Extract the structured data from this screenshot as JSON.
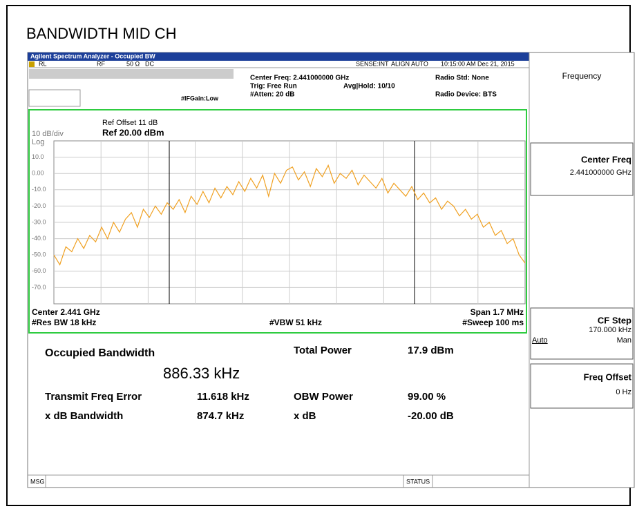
{
  "page_title": "BANDWIDTH MID CH",
  "window": {
    "title": "Agilent Spectrum Analyzer - Occupied BW"
  },
  "status_row": {
    "rl": "RL",
    "rf": "RF",
    "impedance": "50 Ω",
    "coupling": "DC",
    "sense": "SENSE:INT",
    "align": "ALIGN AUTO",
    "time": "10:15:00 AM Dec 21, 2015"
  },
  "header": {
    "center_freq": "Center Freq: 2.441000000 GHz",
    "trig": "Trig: Free Run",
    "avg_hold": "Avg|Hold: 10/10",
    "atten": "#Atten: 20 dB",
    "if_gain": "#IFGain:Low",
    "radio_std": "Radio Std: None",
    "radio_device": "Radio Device: BTS"
  },
  "graph": {
    "ref_offset": "Ref Offset 11 dB",
    "scale": "10 dB/div",
    "ref_level": "Ref 20.00 dBm",
    "log": "Log",
    "center": "Center 2.441 GHz",
    "span": "Span 1.7 MHz",
    "res_bw": "#Res BW 18 kHz",
    "vbw": "#VBW 51 kHz",
    "sweep": "#Sweep 100 ms"
  },
  "chart_data": {
    "type": "line",
    "color": "#f0a020",
    "ylim": [
      -80,
      20
    ],
    "yticks": [
      {
        "value": 10,
        "label": "10.0"
      },
      {
        "value": 0,
        "label": "0.00"
      },
      {
        "value": -10,
        "label": "-10.0"
      },
      {
        "value": -20,
        "label": "-20.0"
      },
      {
        "value": -30,
        "label": "-30.0"
      },
      {
        "value": -40,
        "label": "-40.0"
      },
      {
        "value": -50,
        "label": "-50.0"
      },
      {
        "value": -60,
        "label": "-60.0"
      },
      {
        "value": -70,
        "label": "-70.0"
      }
    ],
    "grid": true,
    "values": [
      -50,
      -56,
      -45,
      -48,
      -40,
      -46,
      -38,
      -42,
      -33,
      -40,
      -30,
      -36,
      -28,
      -24,
      -33,
      -22,
      -27,
      -20,
      -25,
      -18,
      -22,
      -16,
      -24,
      -14,
      -19,
      -11,
      -18,
      -9,
      -15,
      -8,
      -13,
      -5,
      -11,
      -3,
      -9,
      -1,
      -14,
      0,
      -6,
      2,
      4,
      -4,
      1,
      -8,
      3,
      -2,
      5,
      -6,
      0,
      -3,
      2,
      -7,
      -1,
      -5,
      -9,
      -3,
      -12,
      -6,
      -10,
      -14,
      -8,
      -16,
      -12,
      -18,
      -15,
      -22,
      -17,
      -20,
      -26,
      -22,
      -28,
      -25,
      -33,
      -30,
      -38,
      -35,
      -43,
      -40,
      -50,
      -55
    ]
  },
  "softkeys": {
    "menu": "Frequency",
    "center_freq": {
      "label": "Center Freq",
      "value": "2.441000000 GHz"
    },
    "cf_step": {
      "label": "CF Step",
      "value": "170.000 kHz",
      "auto": "Auto",
      "man": "Man"
    },
    "freq_offset": {
      "label": "Freq Offset",
      "value": "0 Hz"
    }
  },
  "results": {
    "obw_label": "Occupied Bandwidth",
    "obw_value": "886.33 kHz",
    "total_power_label": "Total Power",
    "total_power_value": "17.9 dBm",
    "tfe_label": "Transmit Freq Error",
    "tfe_value": "11.618 kHz",
    "obw_power_label": "OBW Power",
    "obw_power_value": "99.00 %",
    "xdb_bw_label": "x dB Bandwidth",
    "xdb_bw_value": "874.7 kHz",
    "xdb_label": "x dB",
    "xdb_value": "-20.00 dB"
  },
  "footer": {
    "msg": "MSG",
    "status": "STATUS"
  }
}
